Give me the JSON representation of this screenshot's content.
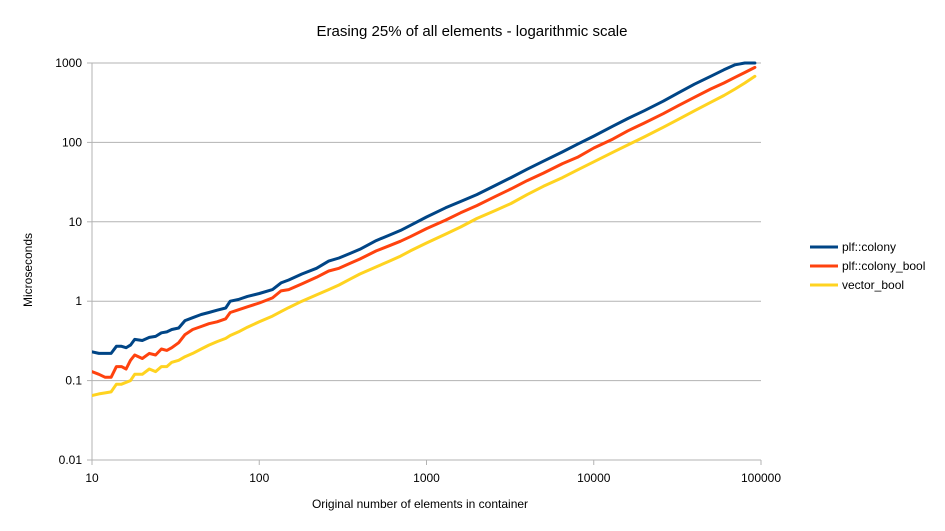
{
  "chart_data": {
    "type": "line",
    "title": "Erasing 25% of all elements - logarithmic scale",
    "xlabel": "Original number of elements in container",
    "ylabel": "Microseconds",
    "x_scale": "log",
    "y_scale": "log",
    "xlim": [
      10,
      100000
    ],
    "ylim": [
      0.01,
      1000
    ],
    "x_ticks": [
      "10",
      "100",
      "1000",
      "10000",
      "100000"
    ],
    "y_ticks": [
      "0.01",
      "0.1",
      "1",
      "10",
      "100",
      "1000"
    ],
    "grid": "horizontal",
    "legend_position": "right",
    "x": [
      10,
      11,
      12,
      13,
      14,
      15,
      16,
      17,
      18,
      20,
      22,
      24,
      26,
      28,
      30,
      33,
      36,
      40,
      45,
      50,
      56,
      63,
      67,
      75,
      85,
      100,
      120,
      135,
      150,
      180,
      220,
      260,
      300,
      350,
      400,
      500,
      600,
      700,
      800,
      1000,
      1300,
      1600,
      2000,
      2600,
      3200,
      4000,
      5000,
      6500,
      8000,
      10000,
      13000,
      16000,
      20000,
      26000,
      32000,
      40000,
      50000,
      60000,
      70000,
      80000,
      92000
    ],
    "series": [
      {
        "name": "plf::colony",
        "color": "#004586",
        "values": [
          0.23,
          0.22,
          0.22,
          0.22,
          0.27,
          0.27,
          0.26,
          0.28,
          0.33,
          0.32,
          0.35,
          0.36,
          0.4,
          0.41,
          0.44,
          0.46,
          0.57,
          0.62,
          0.68,
          0.72,
          0.77,
          0.82,
          1.0,
          1.05,
          1.15,
          1.25,
          1.4,
          1.7,
          1.85,
          2.2,
          2.6,
          3.2,
          3.5,
          4.0,
          4.5,
          5.8,
          6.8,
          7.8,
          9.0,
          11.5,
          15,
          18,
          22,
          29,
          36,
          46,
          58,
          76,
          95,
          120,
          160,
          200,
          250,
          330,
          420,
          540,
          680,
          820,
          950,
          1100,
          1300
        ]
      },
      {
        "name": "plf::colony_bool",
        "color": "#ff420e",
        "values": [
          0.13,
          0.12,
          0.11,
          0.11,
          0.15,
          0.15,
          0.14,
          0.18,
          0.21,
          0.19,
          0.22,
          0.21,
          0.25,
          0.24,
          0.26,
          0.3,
          0.38,
          0.44,
          0.48,
          0.52,
          0.55,
          0.6,
          0.72,
          0.78,
          0.85,
          0.95,
          1.1,
          1.35,
          1.4,
          1.65,
          2.0,
          2.4,
          2.6,
          3.0,
          3.4,
          4.3,
          5.0,
          5.7,
          6.5,
          8.2,
          10.5,
          13,
          16,
          21,
          26,
          33,
          41,
          54,
          65,
          85,
          110,
          140,
          175,
          230,
          290,
          370,
          470,
          560,
          660,
          760,
          880
        ]
      },
      {
        "name": "vector_bool",
        "color": "#ffd320",
        "values": [
          0.065,
          0.068,
          0.07,
          0.072,
          0.09,
          0.09,
          0.095,
          0.1,
          0.12,
          0.12,
          0.14,
          0.13,
          0.15,
          0.15,
          0.17,
          0.18,
          0.2,
          0.22,
          0.25,
          0.28,
          0.31,
          0.34,
          0.37,
          0.41,
          0.47,
          0.55,
          0.65,
          0.74,
          0.83,
          1.0,
          1.2,
          1.4,
          1.6,
          1.9,
          2.2,
          2.7,
          3.2,
          3.7,
          4.3,
          5.4,
          7.0,
          8.6,
          11,
          14,
          17,
          22,
          28,
          36,
          45,
          57,
          75,
          93,
          117,
          155,
          195,
          250,
          320,
          390,
          470,
          560,
          680
        ]
      }
    ]
  }
}
